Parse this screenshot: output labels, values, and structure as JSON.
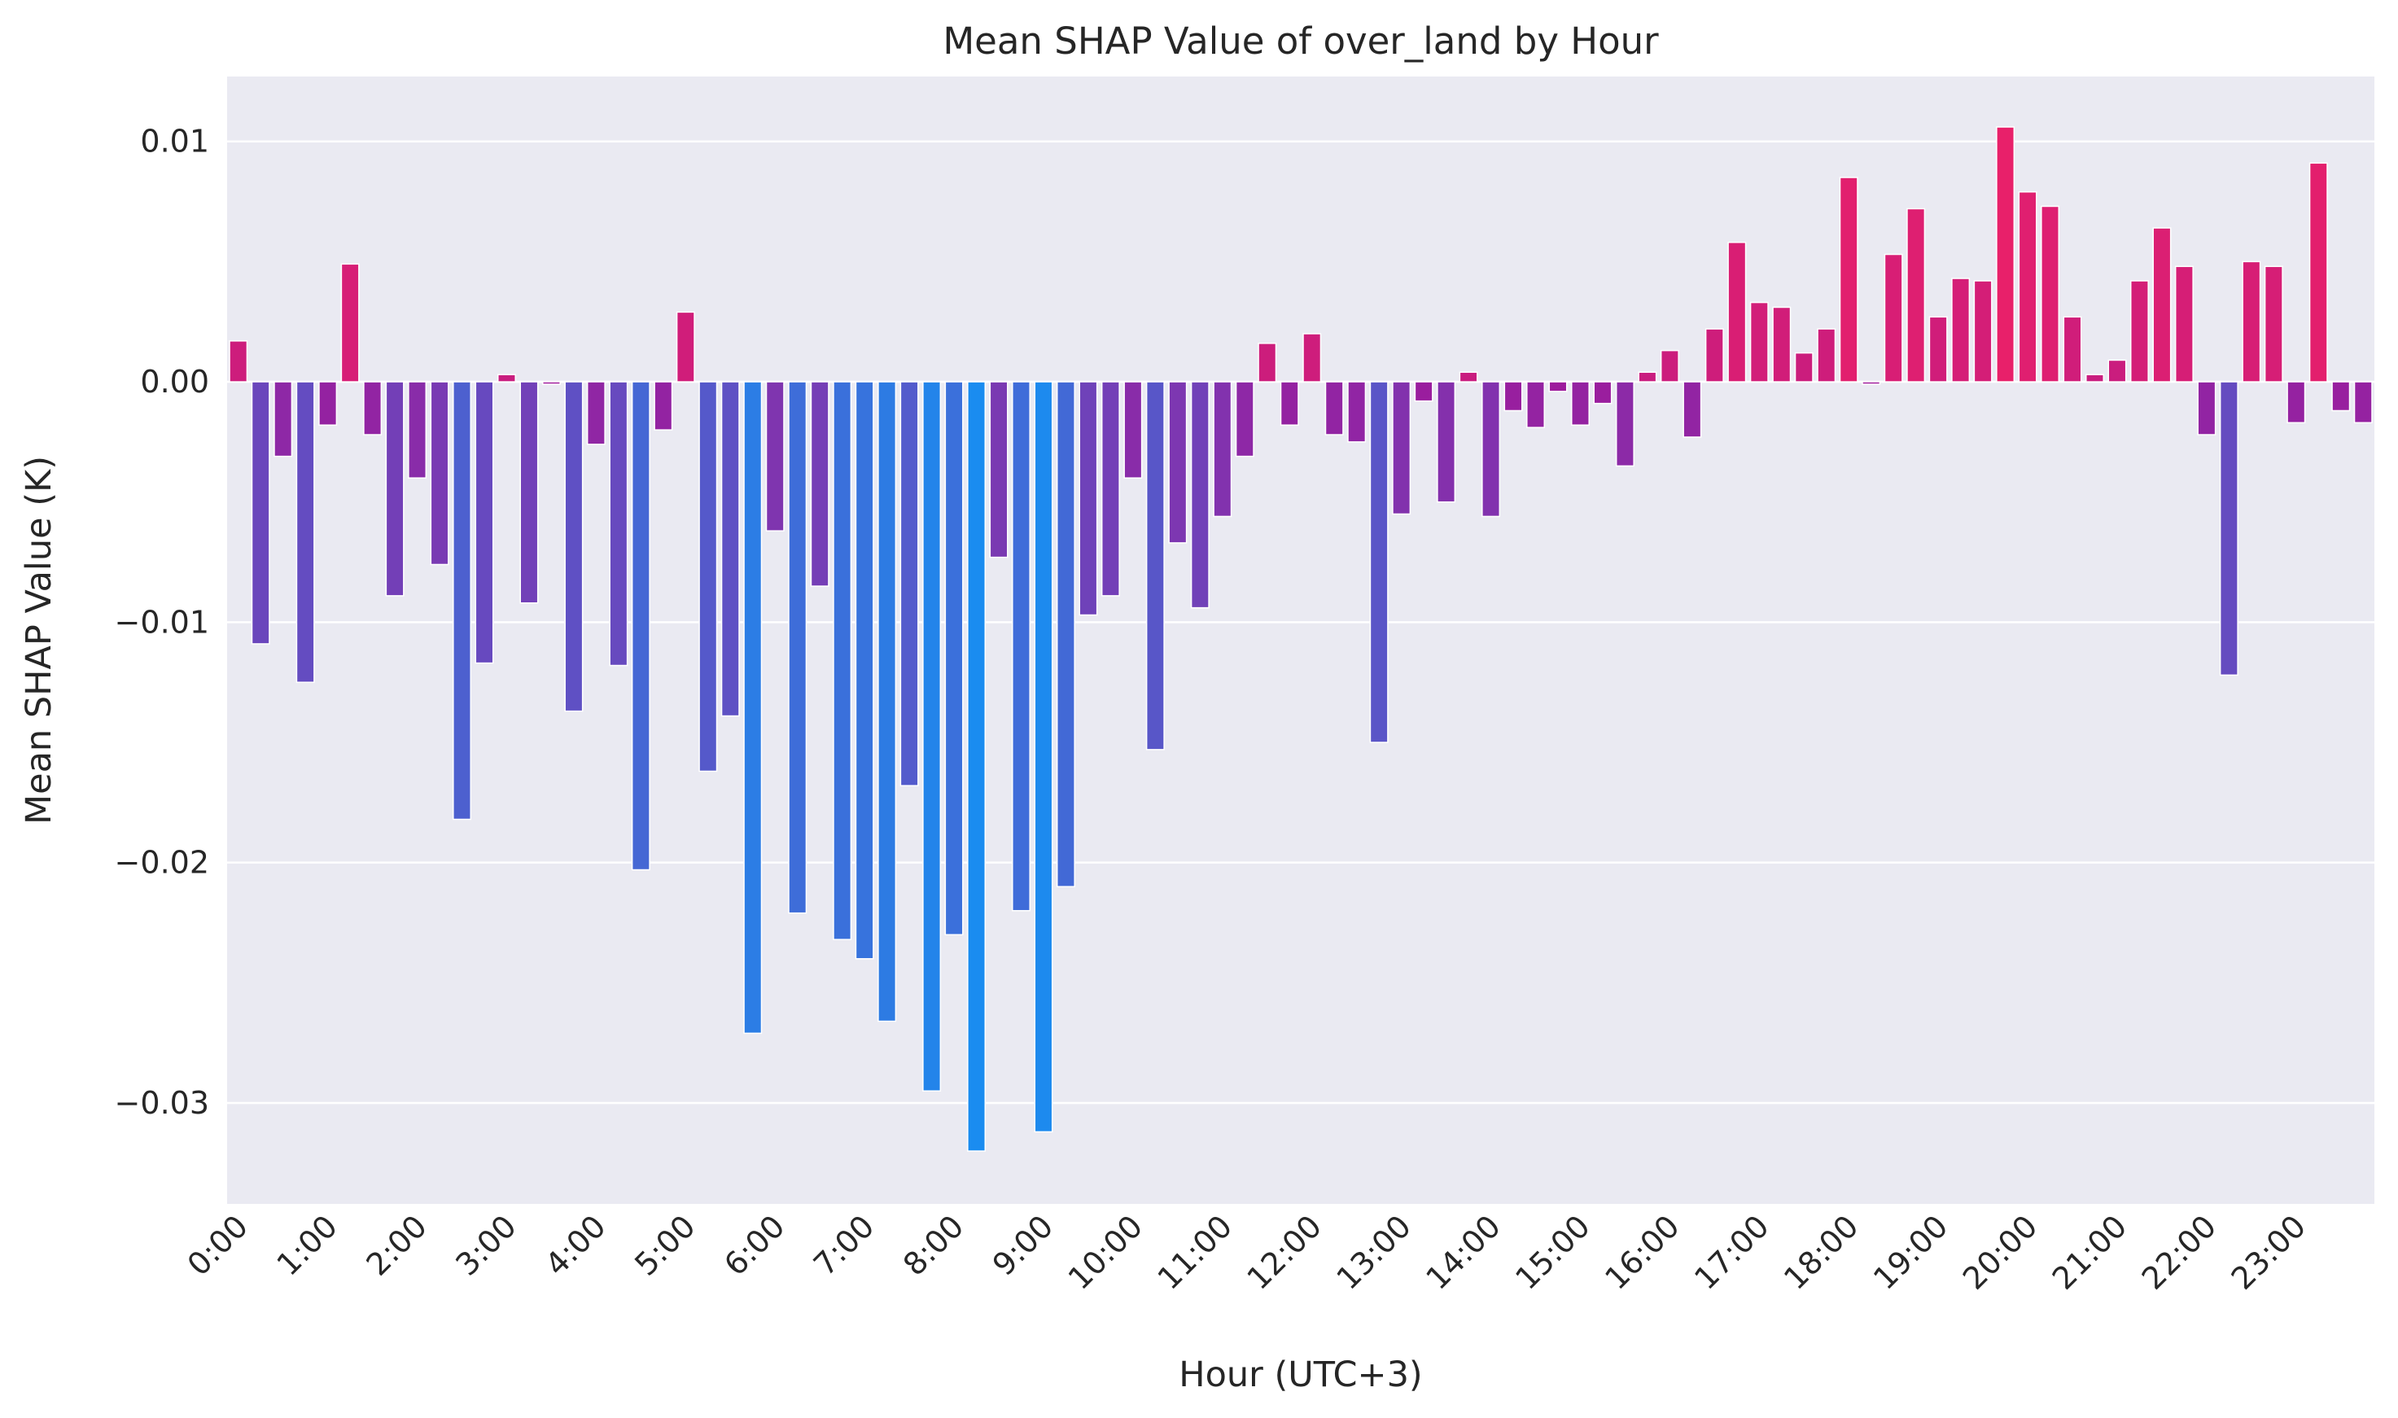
{
  "chart_data": {
    "type": "bar",
    "title": "Mean SHAP Value of over_land by Hour",
    "xlabel": "Hour (UTC+3)",
    "ylabel": "Mean SHAP Value (K)",
    "ylim": [
      -0.0342,
      0.0127
    ],
    "yticks": [
      0.01,
      0.0,
      -0.01,
      -0.02,
      -0.03
    ],
    "ytick_labels": [
      "0.01",
      "0.00",
      "−0.01",
      "−0.02",
      "−0.03"
    ],
    "xtick_labels": [
      "0:00",
      "1:00",
      "2:00",
      "3:00",
      "4:00",
      "5:00",
      "6:00",
      "7:00",
      "8:00",
      "9:00",
      "10:00",
      "11:00",
      "12:00",
      "13:00",
      "14:00",
      "15:00",
      "16:00",
      "17:00",
      "18:00",
      "19:00",
      "20:00",
      "21:00",
      "22:00",
      "23:00"
    ],
    "bars_per_hour": 4,
    "grid": true,
    "background": "#eaeaf2",
    "grid_color": "#ffffff",
    "color_scale": {
      "negative": "#1a8cf0",
      "mid": "#a0189a",
      "positive": "#e8206a"
    },
    "values": [
      0.0017,
      -0.0109,
      -0.0031,
      -0.0125,
      -0.0018,
      0.0049,
      -0.0022,
      -0.0089,
      -0.004,
      -0.0076,
      -0.0182,
      -0.0117,
      0.0003,
      -0.0092,
      -0.0001,
      -0.0137,
      -0.0026,
      -0.0118,
      -0.0203,
      -0.002,
      0.0029,
      -0.0162,
      -0.0139,
      -0.0271,
      -0.0062,
      -0.0221,
      -0.0085,
      -0.0232,
      -0.024,
      -0.0266,
      -0.0168,
      -0.0295,
      -0.023,
      -0.032,
      -0.0073,
      -0.022,
      -0.0312,
      -0.021,
      -0.0097,
      -0.0089,
      -0.004,
      -0.0153,
      -0.0067,
      -0.0094,
      -0.0056,
      -0.0031,
      0.0016,
      -0.0018,
      0.002,
      -0.0022,
      -0.0025,
      -0.015,
      -0.0055,
      -0.0008,
      -0.005,
      0.0004,
      -0.0056,
      -0.0012,
      -0.0019,
      -0.0004,
      -0.0018,
      -0.0009,
      -0.0035,
      0.0004,
      0.0013,
      -0.0023,
      0.0022,
      0.0058,
      0.0033,
      0.0031,
      0.0012,
      0.0022,
      0.0085,
      -0.0001,
      0.0053,
      0.0072,
      0.0027,
      0.0043,
      0.0042,
      0.0106,
      0.0079,
      0.0073,
      0.0027,
      0.0003,
      0.0009,
      0.0042,
      0.0064,
      0.0048,
      -0.0022,
      -0.0122,
      0.005,
      0.0048,
      -0.0017,
      0.0091,
      -0.0012,
      -0.0017
    ]
  }
}
